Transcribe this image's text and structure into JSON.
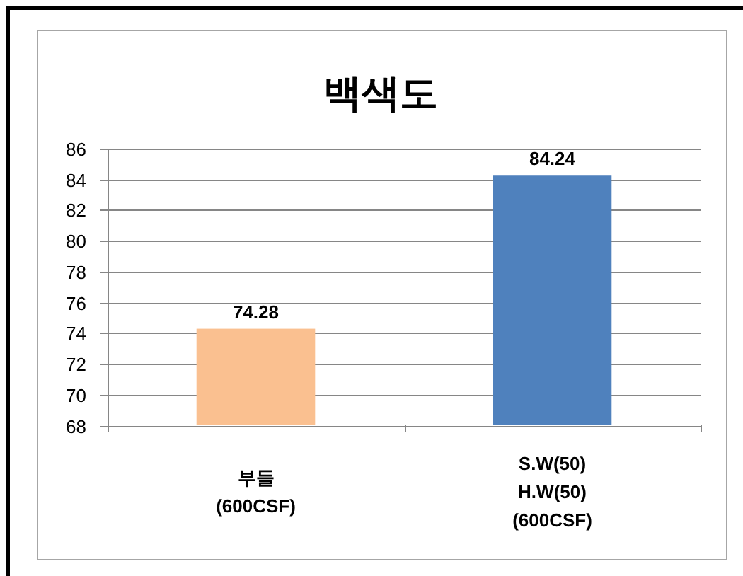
{
  "chart_data": {
    "type": "bar",
    "title": "백색도",
    "categories": [
      "부들\n(600CSF)",
      "S.W(50)\nH.W(50)\n(600CSF)"
    ],
    "values": [
      74.28,
      84.24
    ],
    "colors": [
      "#fac090",
      "#4f81bd"
    ],
    "ylim": [
      68,
      86
    ],
    "yticks": [
      68,
      70,
      72,
      74,
      76,
      78,
      80,
      82,
      84,
      86
    ],
    "grid": "y",
    "data_labels": true
  }
}
